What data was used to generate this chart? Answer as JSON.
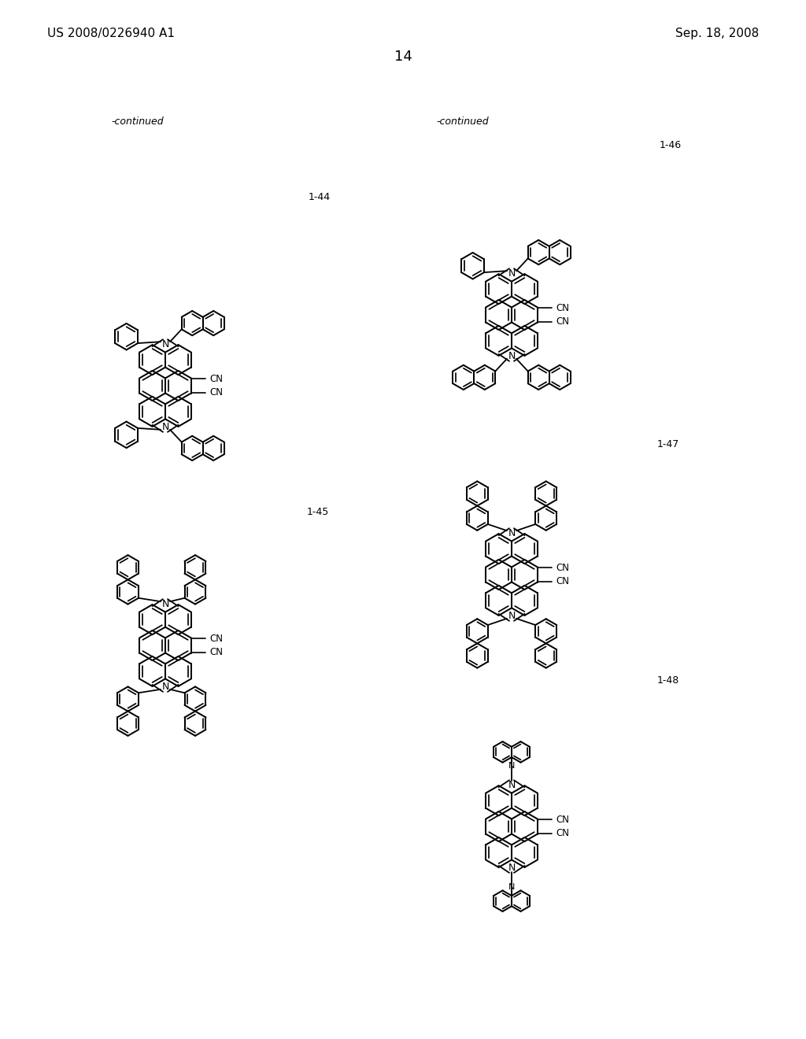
{
  "bg": "#ffffff",
  "header_left": "US 2008/0226940 A1",
  "header_right": "Sep. 18, 2008",
  "page_num": "14",
  "cont_left": "-continued",
  "cont_right": "-continued",
  "lbl_44": "1-44",
  "lbl_45": "1-45",
  "lbl_46": "1-46",
  "lbl_47": "1-47",
  "lbl_48": "1-48"
}
